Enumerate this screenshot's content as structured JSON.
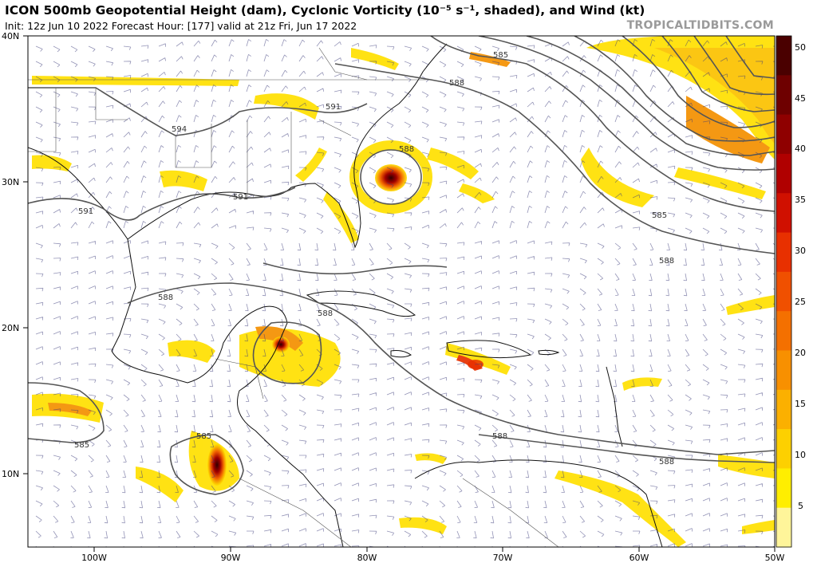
{
  "header": {
    "title": "ICON 500mb Geopotential Height (dam), Cyclonic Vorticity (10⁻⁵ s⁻¹, shaded), and Wind (kt)",
    "subtitle": "Init: 12z Jun 10 2022   Forecast Hour: [177]   valid at 21z Fri, Jun 17 2022",
    "credit": "TROPICALTIDBITS.COM"
  },
  "axes": {
    "lat_labels": [
      "40N",
      "30N",
      "20N",
      "10N"
    ],
    "lon_labels": [
      "100W",
      "90W",
      "80W",
      "70W",
      "60W",
      "50W"
    ]
  },
  "colorbar": {
    "labels": [
      "50",
      "45",
      "40",
      "35",
      "30",
      "25",
      "20",
      "15",
      "10",
      "5"
    ],
    "colors": [
      "#4a0000",
      "#6e0000",
      "#8f0000",
      "#b00000",
      "#d01000",
      "#e83000",
      "#f05000",
      "#f47000",
      "#f89000",
      "#fbb000",
      "#fdd000",
      "#ffee00",
      "#fff59a"
    ]
  },
  "contour_labels": {
    "c585": "585",
    "c588": "588",
    "c591": "591",
    "c594": "594"
  }
}
